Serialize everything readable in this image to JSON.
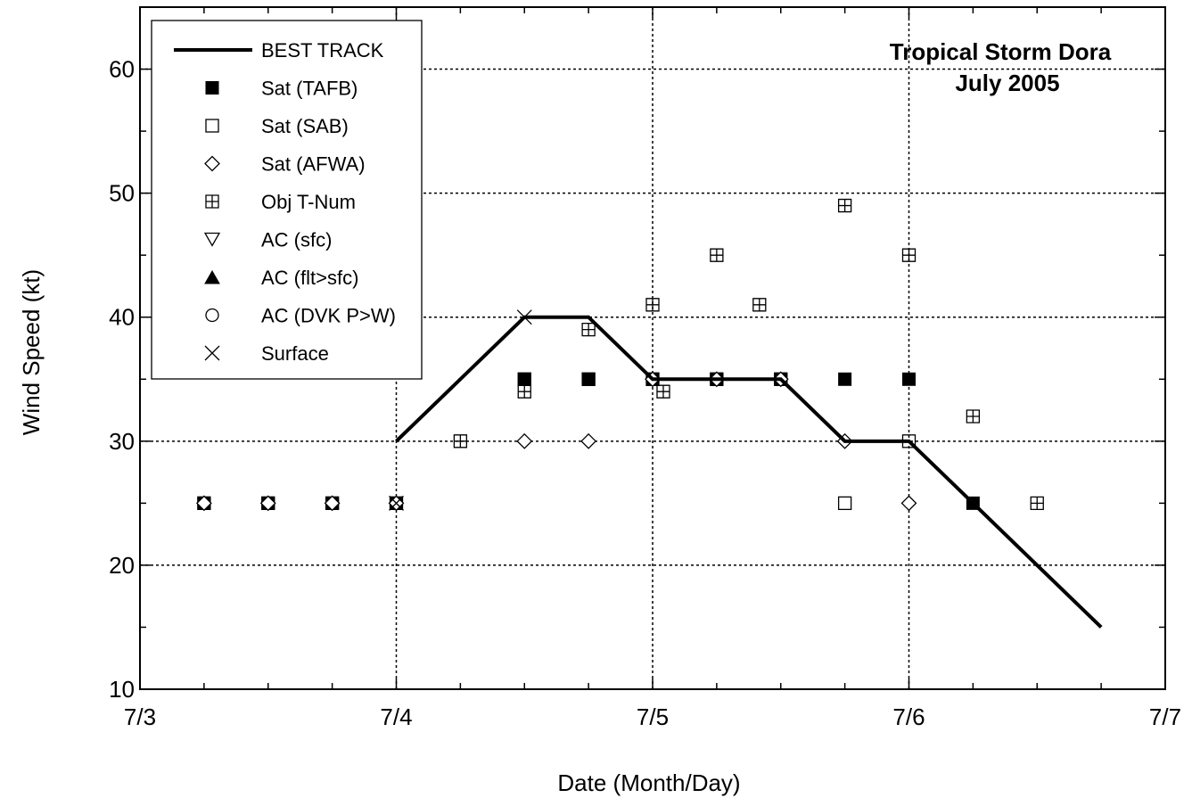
{
  "chart_data": {
    "type": "scatter",
    "title": "Tropical Storm Dora",
    "subtitle": "July 2005",
    "xlabel": "Date (Month/Day)",
    "ylabel": "Wind Speed (kt)",
    "xlim": [
      "7/3",
      "7/7"
    ],
    "ylim": [
      10,
      65
    ],
    "x_ticks": [
      "7/3",
      "7/4",
      "7/5",
      "7/6",
      "7/7"
    ],
    "y_ticks": [
      10,
      20,
      30,
      40,
      50,
      60
    ],
    "grid": true,
    "legend_position": "top-left",
    "legend": [
      {
        "label": "BEST TRACK",
        "symbol": "line"
      },
      {
        "label": "Sat (TAFB)",
        "symbol": "filled-square"
      },
      {
        "label": "Sat (SAB)",
        "symbol": "open-square"
      },
      {
        "label": "Sat (AFWA)",
        "symbol": "open-diamond"
      },
      {
        "label": "Obj T-Num",
        "symbol": "crossed-square"
      },
      {
        "label": "AC (sfc)",
        "symbol": "open-triangle-down"
      },
      {
        "label": "AC (flt>sfc)",
        "symbol": "filled-triangle-up"
      },
      {
        "label": "AC (DVK P>W)",
        "symbol": "open-circle"
      },
      {
        "label": "Surface",
        "symbol": "x-mark"
      }
    ],
    "series": [
      {
        "name": "BEST TRACK",
        "points": [
          {
            "x": "07-04 00:00",
            "y": 30
          },
          {
            "x": "07-04 12:00",
            "y": 40
          },
          {
            "x": "07-04 18:00",
            "y": 40
          },
          {
            "x": "07-05 00:00",
            "y": 35
          },
          {
            "x": "07-05 06:00",
            "y": 35
          },
          {
            "x": "07-05 12:00",
            "y": 35
          },
          {
            "x": "07-05 18:00",
            "y": 30
          },
          {
            "x": "07-06 00:00",
            "y": 30
          },
          {
            "x": "07-06 06:00",
            "y": 25
          },
          {
            "x": "07-06 12:00",
            "y": 20
          },
          {
            "x": "07-06 18:00",
            "y": 15
          }
        ]
      },
      {
        "name": "Sat (TAFB)",
        "points": [
          {
            "x": "07-03 06:00",
            "y": 25
          },
          {
            "x": "07-03 12:00",
            "y": 25
          },
          {
            "x": "07-03 18:00",
            "y": 25
          },
          {
            "x": "07-04 00:00",
            "y": 25
          },
          {
            "x": "07-04 12:00",
            "y": 35
          },
          {
            "x": "07-04 18:00",
            "y": 35
          },
          {
            "x": "07-05 00:00",
            "y": 35
          },
          {
            "x": "07-05 06:00",
            "y": 35
          },
          {
            "x": "07-05 12:00",
            "y": 35
          },
          {
            "x": "07-05 18:00",
            "y": 35
          },
          {
            "x": "07-06 00:00",
            "y": 35
          },
          {
            "x": "07-06 06:00",
            "y": 25
          }
        ]
      },
      {
        "name": "Sat (SAB)",
        "points": [
          {
            "x": "07-03 06:00",
            "y": 25
          },
          {
            "x": "07-03 12:00",
            "y": 25
          },
          {
            "x": "07-03 18:00",
            "y": 25
          },
          {
            "x": "07-04 00:00",
            "y": 25
          },
          {
            "x": "07-04 12:00",
            "y": 35
          },
          {
            "x": "07-04 18:00",
            "y": 35
          },
          {
            "x": "07-05 00:00",
            "y": 35
          },
          {
            "x": "07-05 06:00",
            "y": 35
          },
          {
            "x": "07-05 12:00",
            "y": 35
          },
          {
            "x": "07-05 18:00",
            "y": 25
          },
          {
            "x": "07-06 00:00",
            "y": 30
          }
        ]
      },
      {
        "name": "Sat (AFWA)",
        "points": [
          {
            "x": "07-03 06:00",
            "y": 25
          },
          {
            "x": "07-03 12:00",
            "y": 25
          },
          {
            "x": "07-03 18:00",
            "y": 25
          },
          {
            "x": "07-04 00:00",
            "y": 25
          },
          {
            "x": "07-04 12:00",
            "y": 30
          },
          {
            "x": "07-04 18:00",
            "y": 30
          },
          {
            "x": "07-05 00:00",
            "y": 35
          },
          {
            "x": "07-05 06:00",
            "y": 35
          },
          {
            "x": "07-05 12:00",
            "y": 35
          },
          {
            "x": "07-05 18:00",
            "y": 30
          },
          {
            "x": "07-06 00:00",
            "y": 25
          }
        ]
      },
      {
        "name": "Obj T-Num",
        "points": [
          {
            "x": "07-04 06:00",
            "y": 30
          },
          {
            "x": "07-04 12:00",
            "y": 34
          },
          {
            "x": "07-04 18:00",
            "y": 39
          },
          {
            "x": "07-05 00:00",
            "y": 41
          },
          {
            "x": "07-05 01:00",
            "y": 34
          },
          {
            "x": "07-05 06:00",
            "y": 45
          },
          {
            "x": "07-05 10:00",
            "y": 41
          },
          {
            "x": "07-05 18:00",
            "y": 49
          },
          {
            "x": "07-06 00:00",
            "y": 45
          },
          {
            "x": "07-06 06:00",
            "y": 32
          },
          {
            "x": "07-06 12:00",
            "y": 25
          }
        ]
      },
      {
        "name": "Surface",
        "points": [
          {
            "x": "07-04 00:00",
            "y": 25
          },
          {
            "x": "07-04 12:00",
            "y": 40
          }
        ]
      }
    ]
  }
}
